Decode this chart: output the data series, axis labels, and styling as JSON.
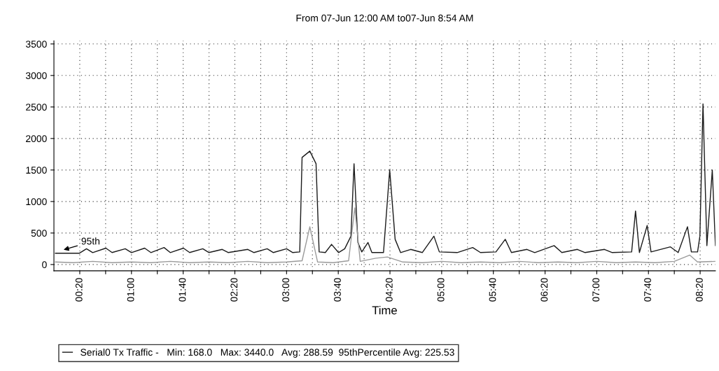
{
  "chart_data": {
    "type": "line",
    "title": "From 07-Jun 12:00 AM to07-Jun 8:54 AM",
    "xlabel": "Time",
    "xlim": [
      0,
      8.53
    ],
    "ylim": [
      -100,
      3550
    ],
    "yticks": [
      0,
      500,
      1000,
      1500,
      2000,
      2500,
      3000,
      3500
    ],
    "xticks": [
      {
        "value": 0.3333,
        "label": "00:20"
      },
      {
        "value": 0.6667,
        "label": null
      },
      {
        "value": 1.0,
        "label": "01:00"
      },
      {
        "value": 1.3333,
        "label": null
      },
      {
        "value": 1.6667,
        "label": "01:40"
      },
      {
        "value": 2.0,
        "label": null
      },
      {
        "value": 2.3333,
        "label": "02:20"
      },
      {
        "value": 2.6667,
        "label": null
      },
      {
        "value": 3.0,
        "label": "03:00"
      },
      {
        "value": 3.3333,
        "label": null
      },
      {
        "value": 3.6667,
        "label": "03:40"
      },
      {
        "value": 4.0,
        "label": null
      },
      {
        "value": 4.3333,
        "label": "04:20"
      },
      {
        "value": 4.6667,
        "label": null
      },
      {
        "value": 5.0,
        "label": "05:00"
      },
      {
        "value": 5.3333,
        "label": null
      },
      {
        "value": 5.6667,
        "label": "05:40"
      },
      {
        "value": 6.0,
        "label": null
      },
      {
        "value": 6.3333,
        "label": "06:20"
      },
      {
        "value": 6.6667,
        "label": null
      },
      {
        "value": 7.0,
        "label": "07:00"
      },
      {
        "value": 7.3333,
        "label": null
      },
      {
        "value": 7.6667,
        "label": "07:40"
      },
      {
        "value": 8.0,
        "label": null
      },
      {
        "value": 8.3333,
        "label": "08:20"
      }
    ],
    "grid": true,
    "legend": "bottom",
    "marker": "none",
    "line_style": "solid",
    "annotations": [
      {
        "text": "95th",
        "x": 0.1,
        "y": 225.53
      }
    ],
    "series": [
      {
        "name": "Serial0 Tx Traffic -   Min: 168.0   Max: 3440.0   Avg: 288.59  95thPercentile Avg: 225.53",
        "color": "#1a1a1a",
        "x": [
          0.02,
          0.33,
          0.42,
          0.5,
          0.67,
          0.75,
          0.92,
          1.0,
          1.17,
          1.25,
          1.42,
          1.5,
          1.67,
          1.75,
          1.92,
          2.0,
          2.17,
          2.25,
          2.5,
          2.58,
          2.75,
          2.83,
          3.0,
          3.08,
          3.17,
          3.2,
          3.3,
          3.38,
          3.42,
          3.5,
          3.58,
          3.67,
          3.75,
          3.83,
          3.87,
          3.92,
          3.97,
          4.05,
          4.1,
          4.25,
          4.33,
          4.4,
          4.47,
          4.6,
          4.75,
          4.9,
          4.97,
          5.2,
          5.4,
          5.5,
          5.7,
          5.82,
          5.9,
          6.1,
          6.2,
          6.45,
          6.55,
          6.75,
          6.85,
          7.1,
          7.2,
          7.45,
          7.5,
          7.55,
          7.65,
          7.7,
          7.95,
          8.05,
          8.17,
          8.22,
          8.3,
          8.33,
          8.37,
          8.42,
          8.49,
          8.53
        ],
        "values": [
          180,
          180,
          250,
          190,
          260,
          190,
          250,
          190,
          260,
          190,
          270,
          190,
          260,
          190,
          250,
          190,
          240,
          190,
          240,
          190,
          250,
          190,
          250,
          190,
          200,
          1700,
          1800,
          1600,
          200,
          190,
          320,
          190,
          250,
          450,
          1600,
          350,
          200,
          350,
          190,
          190,
          1500,
          400,
          190,
          240,
          190,
          450,
          200,
          190,
          270,
          190,
          200,
          400,
          190,
          240,
          190,
          300,
          190,
          240,
          190,
          240,
          190,
          200,
          850,
          190,
          620,
          200,
          280,
          190,
          600,
          200,
          200,
          450,
          2550,
          300,
          1500,
          300
        ]
      },
      {
        "color": "#9a9a9a",
        "x": [
          0.02,
          0.25,
          0.5,
          0.75,
          1.0,
          1.25,
          1.5,
          1.75,
          2.0,
          2.25,
          2.5,
          2.75,
          3.0,
          3.2,
          3.3,
          3.4,
          3.6,
          3.8,
          3.88,
          3.95,
          4.15,
          4.3,
          4.5,
          4.75,
          5.0,
          5.25,
          5.5,
          5.75,
          6.0,
          6.25,
          6.5,
          6.75,
          7.0,
          7.25,
          7.5,
          7.75,
          8.0,
          8.2,
          8.3,
          8.53
        ],
        "values": [
          40,
          30,
          50,
          30,
          40,
          30,
          50,
          30,
          40,
          30,
          50,
          30,
          40,
          60,
          600,
          40,
          30,
          60,
          900,
          50,
          100,
          120,
          40,
          30,
          50,
          30,
          40,
          30,
          50,
          30,
          40,
          30,
          50,
          30,
          40,
          30,
          50,
          150,
          40,
          50
        ]
      }
    ]
  }
}
